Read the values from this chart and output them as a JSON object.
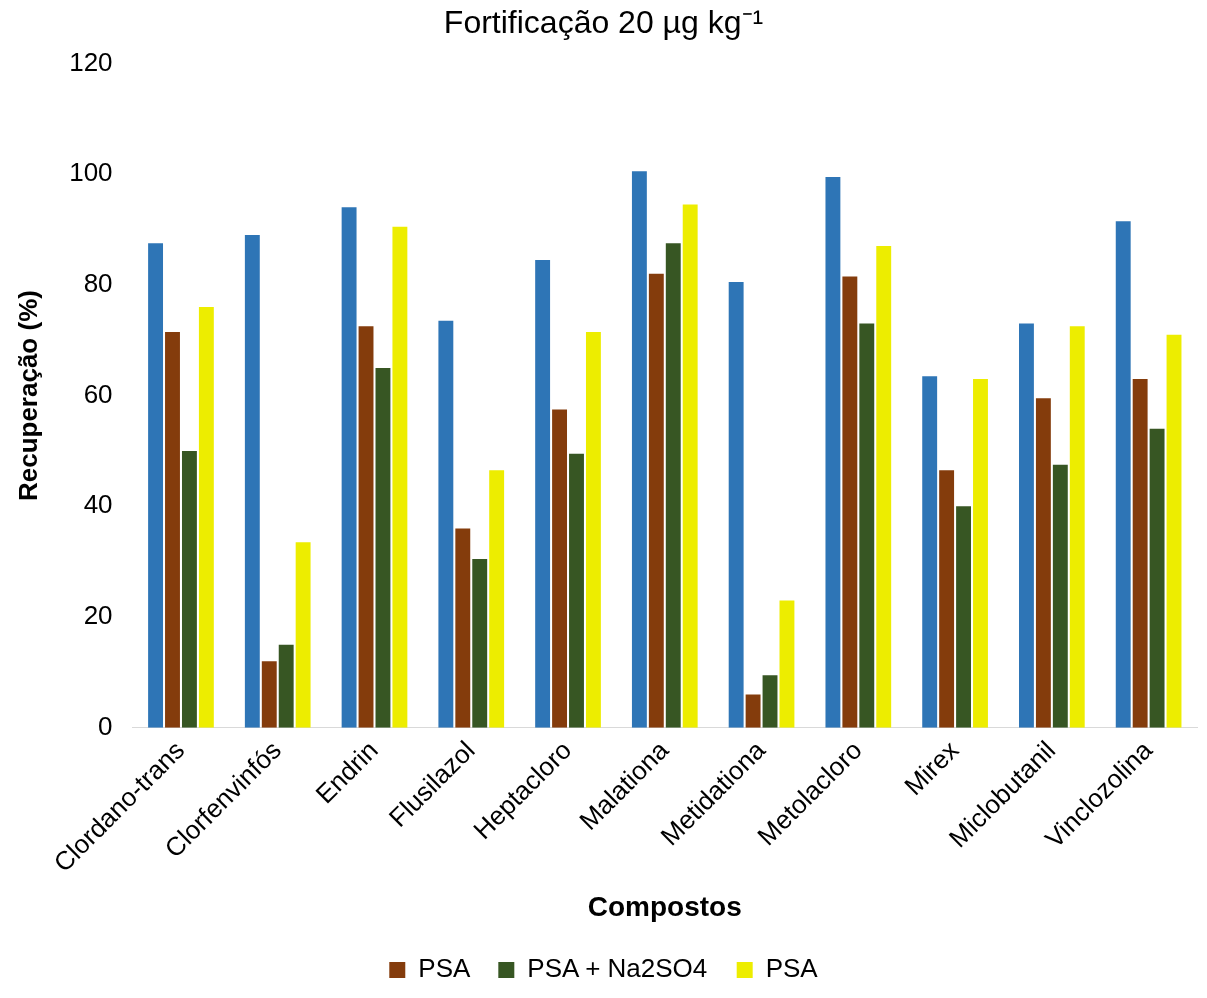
{
  "chart_data": {
    "type": "bar",
    "title": "Fortificação 20 µg kg⁻¹",
    "xlabel": "Compostos",
    "ylabel": "Recuperação (%)",
    "categories": [
      "Clordano-trans",
      "Clorfenvinfós",
      "Endrin",
      "Flusilazol",
      "Heptacloro",
      "Malationa",
      "Metidationa",
      "Metolacloro",
      "Mirex",
      "Miclobutanil",
      "Vinclozolina"
    ],
    "series": [
      {
        "color": "#2e75b6",
        "values": [
          87.5,
          89,
          94,
          73.5,
          84.5,
          100.5,
          80.5,
          99.5,
          63.5,
          73,
          91.5
        ]
      },
      {
        "name": "PSA",
        "color": "#843c0c",
        "values": [
          71.5,
          12,
          72.5,
          36,
          57.5,
          82,
          6,
          81.5,
          46.5,
          59.5,
          63
        ]
      },
      {
        "name": "PSA + Na2SO4",
        "color": "#375623",
        "values": [
          50,
          15,
          65,
          30.5,
          49.5,
          87.5,
          9.5,
          73,
          40,
          47.5,
          54
        ]
      },
      {
        "name": "PSA",
        "color": "#eded00",
        "values": [
          76,
          33.5,
          90.5,
          46.5,
          71.5,
          94.5,
          23,
          87,
          63,
          72.5,
          71
        ]
      }
    ],
    "ylim": [
      0,
      120
    ],
    "yticks": [
      0,
      20,
      40,
      60,
      80,
      100,
      120
    ],
    "grid": false,
    "legend": "bottom"
  }
}
